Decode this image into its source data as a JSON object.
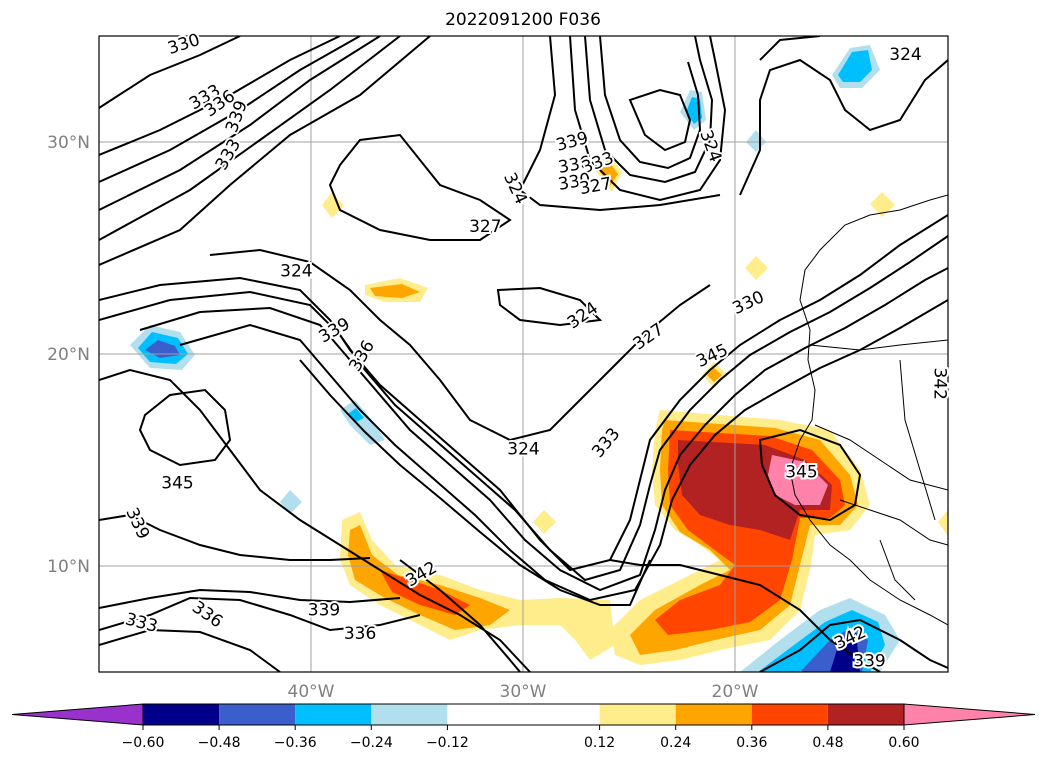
{
  "chart_data": {
    "type": "contour-map",
    "title": "2022091200 F036",
    "map_extent": {
      "lon": [
        -50,
        -10
      ],
      "lat": [
        5,
        35
      ]
    },
    "grid": true,
    "x_ticks": [
      {
        "lon": -40,
        "label": "40°W"
      },
      {
        "lon": -30,
        "label": "30°W"
      },
      {
        "lon": -20,
        "label": "20°W"
      }
    ],
    "y_ticks": [
      {
        "lat": 30,
        "label": "30°N"
      },
      {
        "lat": 20,
        "label": "20°N"
      },
      {
        "lat": 10,
        "label": "10°N"
      }
    ],
    "colorbar": {
      "orientation": "horizontal",
      "extend": "both",
      "levels": [
        -0.72,
        -0.6,
        -0.48,
        -0.36,
        -0.24,
        -0.12,
        0.12,
        0.24,
        0.36,
        0.48,
        0.6,
        0.72
      ],
      "colors": [
        "#9932cc",
        "#00008b",
        "#3a5fcd",
        "#00bfff",
        "#b2dfee",
        "#ffffff",
        "#ffec8b",
        "#ffa500",
        "#ff4500",
        "#b22222",
        "#ff82ab"
      ],
      "tick_values": [
        -0.6,
        -0.48,
        -0.36,
        -0.24,
        -0.12,
        0.12,
        0.24,
        0.36,
        0.48,
        0.6
      ],
      "tick_labels": [
        "−0.60",
        "−0.48",
        "−0.36",
        "−0.24",
        "−0.12",
        "0.12",
        "0.24",
        "0.36",
        "0.48",
        "0.60"
      ]
    },
    "contour_labels": [
      {
        "text": "330",
        "lon": -46.0,
        "lat": 34.6,
        "rot": -18
      },
      {
        "text": "333",
        "lon": -45.0,
        "lat": 32.1,
        "rot": -30
      },
      {
        "text": "336",
        "lon": -44.3,
        "lat": 31.8,
        "rot": -35
      },
      {
        "text": "339",
        "lon": -43.5,
        "lat": 31.2,
        "rot": -70
      },
      {
        "text": "333",
        "lon": -43.9,
        "lat": 29.4,
        "rot": -60
      },
      {
        "text": "324",
        "lon": -40.7,
        "lat": 23.9,
        "rot": 0
      },
      {
        "text": "327",
        "lon": -31.8,
        "lat": 26.0,
        "rot": 0
      },
      {
        "text": "324",
        "lon": -30.4,
        "lat": 27.8,
        "rot": 65
      },
      {
        "text": "339",
        "lon": -27.7,
        "lat": 30.0,
        "rot": -15
      },
      {
        "text": "336",
        "lon": -27.6,
        "lat": 28.9,
        "rot": -10
      },
      {
        "text": "333",
        "lon": -26.5,
        "lat": 29.0,
        "rot": -20
      },
      {
        "text": "330",
        "lon": -27.6,
        "lat": 28.1,
        "rot": -10
      },
      {
        "text": "327",
        "lon": -26.6,
        "lat": 27.9,
        "rot": -10
      },
      {
        "text": "324",
        "lon": -21.2,
        "lat": 29.8,
        "rot": 70
      },
      {
        "text": "324",
        "lon": -12.0,
        "lat": 34.1,
        "rot": 0
      },
      {
        "text": "324",
        "lon": -27.2,
        "lat": 21.8,
        "rot": -35
      },
      {
        "text": "327",
        "lon": -24.1,
        "lat": 20.8,
        "rot": -35
      },
      {
        "text": "330",
        "lon": -19.4,
        "lat": 22.4,
        "rot": -25
      },
      {
        "text": "345",
        "lon": -21.1,
        "lat": 19.9,
        "rot": -25
      },
      {
        "text": "339",
        "lon": -38.9,
        "lat": 21.1,
        "rot": -30
      },
      {
        "text": "336",
        "lon": -37.6,
        "lat": 19.9,
        "rot": -60
      },
      {
        "text": "324",
        "lon": -30.0,
        "lat": 15.5,
        "rot": 0
      },
      {
        "text": "333",
        "lon": -26.1,
        "lat": 15.8,
        "rot": -50
      },
      {
        "text": "345",
        "lon": -46.3,
        "lat": 13.9,
        "rot": 0
      },
      {
        "text": "339",
        "lon": -48.2,
        "lat": 12.0,
        "rot": 65
      },
      {
        "text": "342",
        "lon": -34.8,
        "lat": 9.6,
        "rot": -30
      },
      {
        "text": "339",
        "lon": -39.4,
        "lat": 7.9,
        "rot": 0
      },
      {
        "text": "336",
        "lon": -44.9,
        "lat": 7.7,
        "rot": 35
      },
      {
        "text": "336",
        "lon": -37.7,
        "lat": 6.8,
        "rot": 0
      },
      {
        "text": "333",
        "lon": -48.0,
        "lat": 7.3,
        "rot": 15
      },
      {
        "text": "345",
        "lon": -16.9,
        "lat": 14.4,
        "rot": 0
      },
      {
        "text": "342",
        "lon": -14.6,
        "lat": 6.6,
        "rot": -25
      },
      {
        "text": "339",
        "lon": -13.7,
        "lat": 5.5,
        "rot": 0
      },
      {
        "text": "342",
        "lon": -10.4,
        "lat": 18.6,
        "rot": 90
      }
    ]
  }
}
